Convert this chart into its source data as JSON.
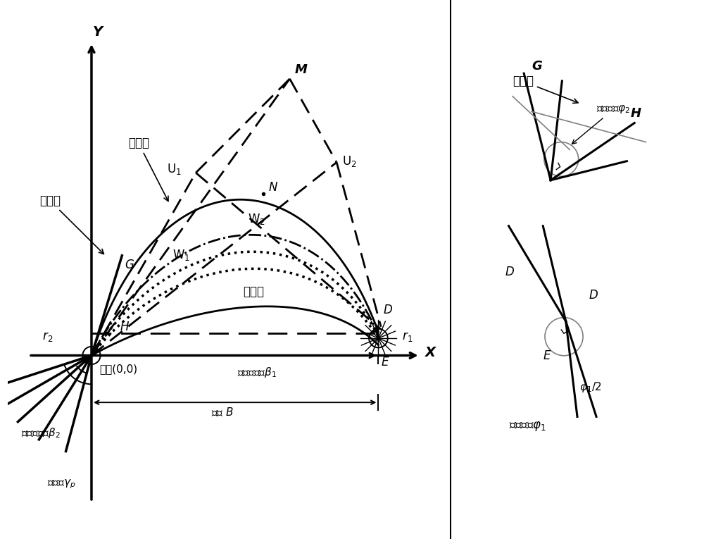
{
  "bg_color": "#ffffff",
  "line_color": "#000000",
  "fig_width": 10.0,
  "fig_height": 7.65,
  "labels": {
    "Y": "Y",
    "X": "X",
    "M": "M",
    "N": "N",
    "U1": "U$_1$",
    "U2": "U$_2$",
    "W1": "W$_1$",
    "W2": "W$_2$",
    "G_left": "G",
    "H_left": "H",
    "E": "E",
    "D": "D",
    "r2": "r$_2$",
    "r1": "r$_1$",
    "origin": "原点(0,0)",
    "suction": "吸力边",
    "pressure": "压力边",
    "rear_forehead": "后额线",
    "front_forehead": "前额线",
    "beta1": "几何进气角$\\beta_1$",
    "beta2": "几何出气角$\\beta_2$",
    "blade_width": "叶宽 $B$",
    "install_angle": "安装角$\\gamma_p$",
    "G_right": "G",
    "H_right": "H",
    "D_right_top": "D",
    "D_right_bot": "D",
    "E_right": "E",
    "phi2": "尾缘契角$\\varphi_2$",
    "phi1": "前缘契角$\\varphi_1$",
    "phi1_half": "$\\varphi_1$/2"
  }
}
